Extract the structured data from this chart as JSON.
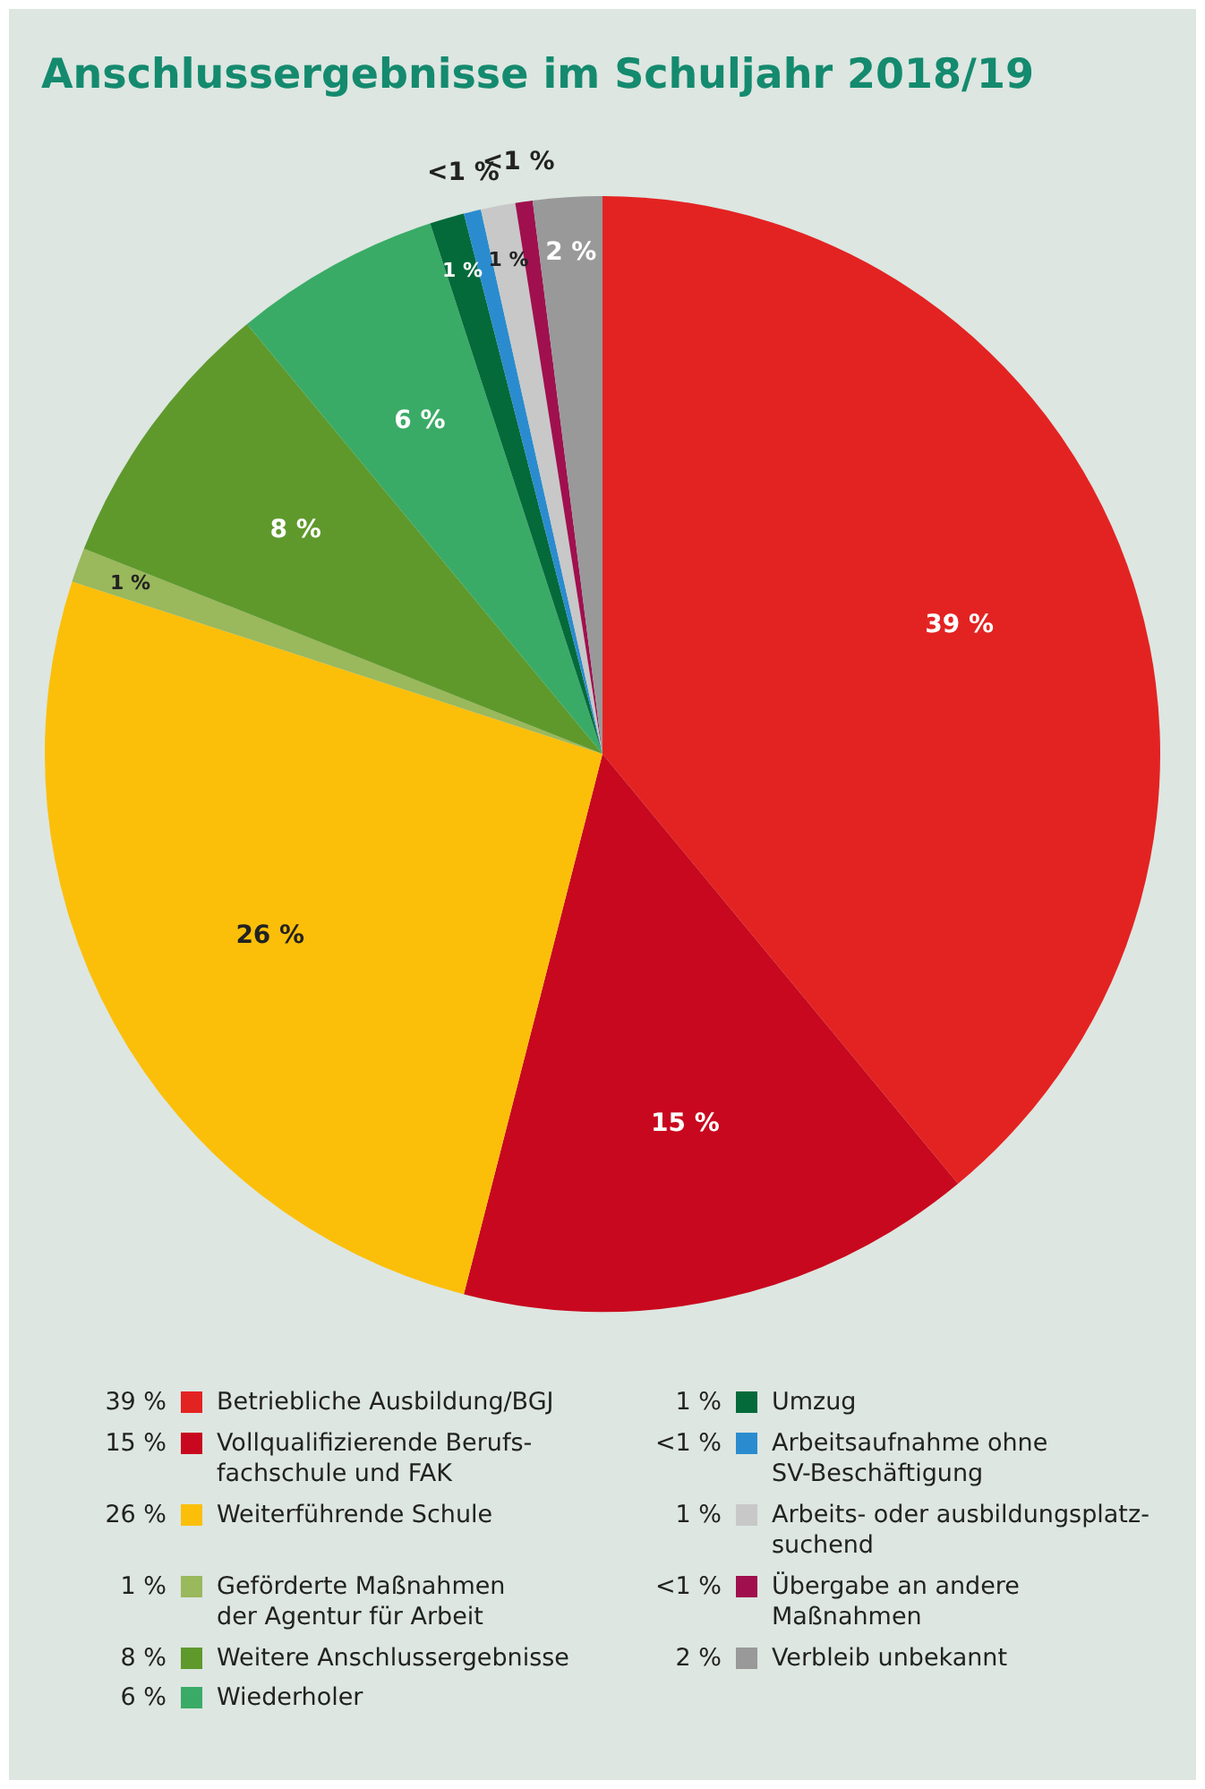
{
  "chart_data": {
    "type": "pie",
    "title": "Anschlussergebnisse im Schuljahr 2018/19",
    "categories": [
      "Betriebliche Ausbildung/BGJ",
      "Vollqualifizierende Berufs-\nfachschule und FAK",
      "Weiterführende Schule",
      "Geförderte Maßnahmen\nder Agentur für Arbeit",
      "Weitere Anschlussergebnisse",
      "Wiederholer",
      "Umzug",
      "Arbeitsaufnahme ohne\nSV-Beschäftigung",
      "Arbeits- oder ausbildungsplatz-\nsuchend",
      "Übergabe an andere\nMaßnahmen",
      "Verbleib unbekannt"
    ],
    "values": [
      39,
      15,
      26,
      1,
      8,
      6,
      1,
      0.5,
      1,
      0.5,
      2
    ],
    "value_labels": [
      "39 %",
      "15 %",
      "26 %",
      "1 %",
      "8 %",
      "6 %",
      "1 %",
      "<1 %",
      "1 %",
      "<1 %",
      "2 %"
    ],
    "colors": [
      "#e32322",
      "#c8081e",
      "#fbbf0a",
      "#9ab85c",
      "#5f992c",
      "#3aab66",
      "#046a3a",
      "#2a8ccf",
      "#c8c8c8",
      "#a0104f",
      "#999999"
    ],
    "legend": "bottom"
  }
}
